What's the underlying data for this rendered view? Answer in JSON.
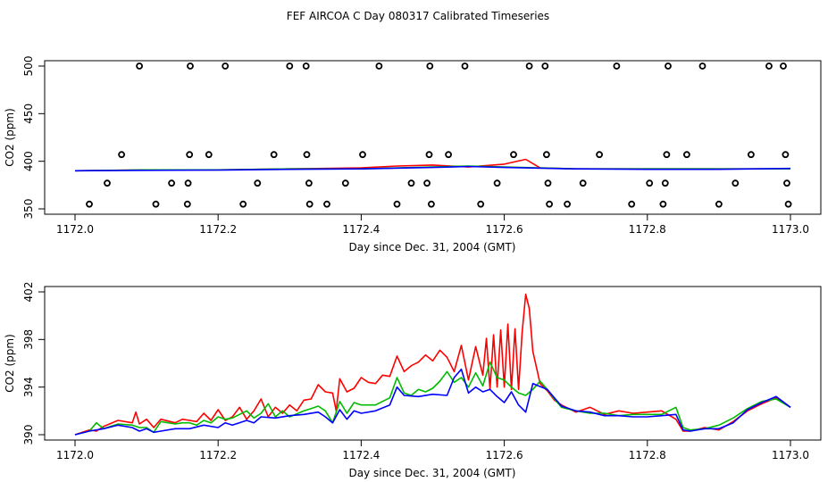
{
  "figure_title": "FEF AIRCOA C  Day 080317  Calibrated Timeseries",
  "chart_data": [
    {
      "type": "line",
      "xlabel": "Day since Dec. 31, 2004 (GMT)",
      "ylabel": "CO2 (ppm)",
      "xlim": [
        1172.0,
        1173.0
      ],
      "ylim": [
        350,
        500
      ],
      "xticks": [
        1172.0,
        1172.2,
        1172.4,
        1172.6,
        1172.8,
        1173.0
      ],
      "xtick_labels": [
        "1172.0",
        "1172.2",
        "1172.4",
        "1172.6",
        "1172.8",
        "1173.0"
      ],
      "yticks": [
        350,
        400,
        450,
        500
      ],
      "ytick_labels": [
        "350",
        "400",
        "450",
        "500"
      ],
      "grid": false,
      "series": [
        {
          "color": "#ff0000",
          "x": [
            1172.0,
            1172.1,
            1172.2,
            1172.3,
            1172.4,
            1172.45,
            1172.5,
            1172.55,
            1172.6,
            1172.63,
            1172.65,
            1172.7,
            1172.8,
            1172.9,
            1173.0
          ],
          "y": [
            390,
            391,
            391,
            392,
            393,
            395,
            396,
            394,
            397,
            402,
            393,
            392,
            392,
            392,
            392
          ]
        },
        {
          "color": "#00bb00",
          "x": [
            1172.0,
            1172.1,
            1172.2,
            1172.3,
            1172.4,
            1172.5,
            1172.55,
            1172.6,
            1172.7,
            1172.8,
            1172.9,
            1173.0
          ],
          "y": [
            390,
            391,
            391,
            392,
            392,
            394,
            395,
            394,
            392,
            392,
            392,
            392
          ]
        },
        {
          "color": "#0000ff",
          "x": [
            1172.0,
            1172.1,
            1172.2,
            1172.3,
            1172.4,
            1172.5,
            1172.55,
            1172.6,
            1172.7,
            1172.8,
            1172.9,
            1173.0
          ],
          "y": [
            390,
            390.5,
            390.8,
            391.5,
            392,
            393.5,
            394.5,
            393.5,
            392,
            391.5,
            391.5,
            392.5
          ]
        }
      ],
      "points": {
        "marker": "open-circle",
        "x": [
          1172.02,
          1172.045,
          1172.065,
          1172.09,
          1172.113,
          1172.135,
          1172.157,
          1172.158,
          1172.16,
          1172.161,
          1172.187,
          1172.21,
          1172.235,
          1172.255,
          1172.278,
          1172.3,
          1172.323,
          1172.324,
          1172.327,
          1172.328,
          1172.352,
          1172.378,
          1172.402,
          1172.425,
          1172.45,
          1172.47,
          1172.492,
          1172.495,
          1172.496,
          1172.498,
          1172.522,
          1172.545,
          1172.567,
          1172.59,
          1172.613,
          1172.635,
          1172.657,
          1172.659,
          1172.661,
          1172.663,
          1172.688,
          1172.71,
          1172.733,
          1172.757,
          1172.778,
          1172.803,
          1172.822,
          1172.825,
          1172.827,
          1172.829,
          1172.855,
          1172.877,
          1172.9,
          1172.923,
          1172.945,
          1172.97,
          1172.99,
          1172.993,
          1172.995,
          1172.997
        ],
        "y": [
          355,
          377,
          407,
          500,
          355,
          377,
          355,
          377,
          407,
          500,
          407,
          500,
          355,
          377,
          407,
          500,
          500,
          407,
          377,
          355,
          355,
          377,
          407,
          500,
          355,
          377,
          377,
          407,
          500,
          355,
          407,
          500,
          355,
          377,
          407,
          500,
          500,
          407,
          377,
          355,
          355,
          377,
          407,
          500,
          355,
          377,
          355,
          377,
          407,
          500,
          407,
          500,
          355,
          377,
          407,
          500,
          500,
          407,
          377,
          355
        ]
      }
    },
    {
      "type": "line",
      "xlabel": "Day since Dec. 31, 2004 (GMT)",
      "ylabel": "CO2 (ppm)",
      "xlim": [
        1172.0,
        1173.0
      ],
      "ylim": [
        390,
        402
      ],
      "xticks": [
        1172.0,
        1172.2,
        1172.4,
        1172.6,
        1172.8,
        1173.0
      ],
      "xtick_labels": [
        "1172.0",
        "1172.2",
        "1172.4",
        "1172.6",
        "1172.8",
        "1173.0"
      ],
      "yticks": [
        390,
        394,
        398,
        402
      ],
      "ytick_labels": [
        "390",
        "394",
        "398",
        "402"
      ],
      "grid": false,
      "series": [
        {
          "color": "#ff0000",
          "x": [
            1172.0,
            1172.02,
            1172.03,
            1172.04,
            1172.06,
            1172.08,
            1172.085,
            1172.09,
            1172.1,
            1172.11,
            1172.12,
            1172.14,
            1172.15,
            1172.16,
            1172.17,
            1172.18,
            1172.19,
            1172.2,
            1172.21,
            1172.22,
            1172.23,
            1172.24,
            1172.25,
            1172.26,
            1172.27,
            1172.28,
            1172.29,
            1172.3,
            1172.31,
            1172.32,
            1172.33,
            1172.34,
            1172.35,
            1172.36,
            1172.365,
            1172.37,
            1172.38,
            1172.39,
            1172.4,
            1172.41,
            1172.42,
            1172.43,
            1172.44,
            1172.45,
            1172.46,
            1172.47,
            1172.48,
            1172.49,
            1172.5,
            1172.51,
            1172.52,
            1172.53,
            1172.54,
            1172.55,
            1172.56,
            1172.57,
            1172.575,
            1172.58,
            1172.585,
            1172.59,
            1172.595,
            1172.6,
            1172.605,
            1172.61,
            1172.615,
            1172.62,
            1172.625,
            1172.63,
            1172.635,
            1172.64,
            1172.65,
            1172.66,
            1172.67,
            1172.68,
            1172.69,
            1172.7,
            1172.72,
            1172.74,
            1172.76,
            1172.78,
            1172.8,
            1172.82,
            1172.84,
            1172.85,
            1172.86,
            1172.88,
            1172.9,
            1172.92,
            1172.94,
            1172.96,
            1172.98,
            1173.0
          ],
          "y": [
            390.0,
            390.4,
            390.3,
            390.7,
            391.2,
            391.0,
            391.9,
            390.9,
            391.3,
            390.6,
            391.3,
            391.0,
            391.3,
            391.2,
            391.1,
            391.8,
            391.2,
            392.1,
            391.2,
            391.5,
            392.3,
            391.3,
            392.0,
            393.0,
            391.5,
            392.3,
            391.8,
            392.5,
            392.0,
            392.9,
            393.0,
            394.2,
            393.6,
            393.5,
            392.0,
            394.7,
            393.6,
            393.9,
            394.8,
            394.4,
            394.3,
            395.0,
            394.9,
            396.6,
            395.3,
            395.8,
            396.1,
            396.7,
            396.2,
            397.1,
            396.5,
            395.3,
            397.5,
            394.6,
            397.4,
            395.0,
            398.1,
            393.8,
            398.4,
            394.0,
            398.8,
            394.0,
            399.3,
            393.8,
            398.9,
            393.8,
            398.6,
            401.8,
            400.6,
            397.0,
            394.3,
            393.7,
            392.9,
            392.5,
            392.2,
            391.9,
            392.3,
            391.7,
            392.0,
            391.8,
            391.9,
            392.0,
            391.3,
            390.3,
            390.3,
            390.6,
            390.4,
            391.1,
            392.0,
            392.6,
            393.1,
            392.3
          ]
        },
        {
          "color": "#00bb00",
          "x": [
            1172.0,
            1172.02,
            1172.03,
            1172.04,
            1172.06,
            1172.08,
            1172.09,
            1172.1,
            1172.11,
            1172.12,
            1172.14,
            1172.15,
            1172.16,
            1172.17,
            1172.18,
            1172.19,
            1172.2,
            1172.21,
            1172.22,
            1172.23,
            1172.24,
            1172.25,
            1172.26,
            1172.27,
            1172.28,
            1172.29,
            1172.3,
            1172.32,
            1172.33,
            1172.34,
            1172.35,
            1172.36,
            1172.37,
            1172.38,
            1172.39,
            1172.4,
            1172.42,
            1172.44,
            1172.45,
            1172.46,
            1172.47,
            1172.48,
            1172.49,
            1172.5,
            1172.51,
            1172.52,
            1172.53,
            1172.54,
            1172.55,
            1172.56,
            1172.57,
            1172.58,
            1172.59,
            1172.6,
            1172.61,
            1172.62,
            1172.63,
            1172.64,
            1172.65,
            1172.66,
            1172.67,
            1172.68,
            1172.7,
            1172.72,
            1172.74,
            1172.76,
            1172.78,
            1172.8,
            1172.82,
            1172.84,
            1172.85,
            1172.86,
            1172.88,
            1172.9,
            1172.92,
            1172.94,
            1172.96,
            1172.98,
            1173.0
          ],
          "y": [
            390.0,
            390.3,
            391.0,
            390.5,
            390.9,
            390.8,
            390.6,
            390.6,
            390.2,
            391.1,
            390.9,
            391.0,
            391.0,
            390.8,
            391.2,
            391.0,
            391.5,
            391.3,
            391.4,
            391.7,
            392.0,
            391.4,
            391.8,
            392.6,
            391.5,
            392.0,
            391.5,
            392.0,
            392.2,
            392.4,
            392.0,
            391.0,
            392.8,
            391.8,
            392.7,
            392.5,
            392.5,
            393.1,
            394.8,
            393.5,
            393.3,
            393.8,
            393.6,
            393.9,
            394.5,
            395.3,
            394.4,
            394.8,
            394.0,
            395.2,
            394.1,
            396.1,
            394.8,
            394.6,
            394.0,
            393.5,
            393.3,
            393.8,
            394.5,
            393.8,
            393.0,
            392.3,
            392.0,
            391.8,
            391.8,
            391.6,
            391.7,
            391.7,
            391.7,
            392.3,
            390.6,
            390.4,
            390.5,
            390.8,
            391.4,
            392.2,
            392.8,
            393.0,
            392.3
          ]
        },
        {
          "color": "#0000ff",
          "x": [
            1172.0,
            1172.02,
            1172.04,
            1172.06,
            1172.08,
            1172.09,
            1172.1,
            1172.11,
            1172.12,
            1172.14,
            1172.16,
            1172.18,
            1172.2,
            1172.21,
            1172.22,
            1172.24,
            1172.25,
            1172.26,
            1172.28,
            1172.3,
            1172.32,
            1172.34,
            1172.35,
            1172.36,
            1172.37,
            1172.38,
            1172.39,
            1172.4,
            1172.42,
            1172.44,
            1172.45,
            1172.46,
            1172.48,
            1172.5,
            1172.52,
            1172.53,
            1172.54,
            1172.55,
            1172.56,
            1172.57,
            1172.58,
            1172.59,
            1172.6,
            1172.61,
            1172.62,
            1172.63,
            1172.64,
            1172.66,
            1172.68,
            1172.7,
            1172.72,
            1172.74,
            1172.76,
            1172.78,
            1172.8,
            1172.82,
            1172.84,
            1172.85,
            1172.86,
            1172.88,
            1172.9,
            1172.92,
            1172.94,
            1172.96,
            1172.98,
            1173.0
          ],
          "y": [
            390.0,
            390.3,
            390.5,
            390.8,
            390.6,
            390.3,
            390.5,
            390.2,
            390.3,
            390.5,
            390.5,
            390.8,
            390.6,
            391.0,
            390.8,
            391.2,
            391.0,
            391.5,
            391.4,
            391.6,
            391.7,
            391.9,
            391.5,
            391.0,
            392.1,
            391.3,
            392.0,
            391.8,
            392.0,
            392.5,
            394.0,
            393.3,
            393.2,
            393.4,
            393.3,
            394.8,
            395.5,
            393.5,
            394.0,
            393.6,
            393.8,
            393.2,
            392.7,
            393.6,
            392.5,
            391.9,
            394.3,
            393.8,
            392.4,
            392.0,
            391.9,
            391.6,
            391.6,
            391.5,
            391.5,
            391.6,
            391.7,
            390.4,
            390.3,
            390.5,
            390.5,
            391.0,
            392.1,
            392.7,
            393.2,
            392.3
          ]
        }
      ]
    }
  ]
}
